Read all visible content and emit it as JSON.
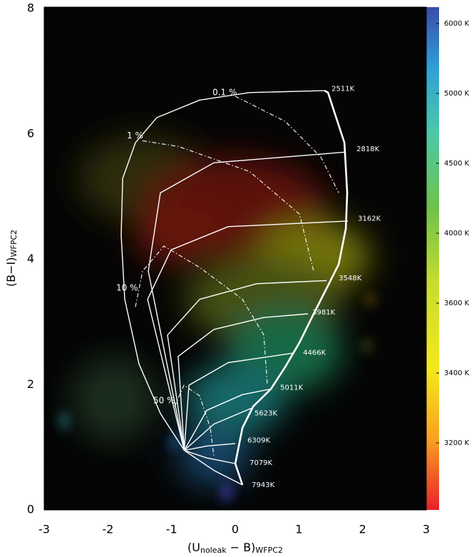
{
  "chart_data": {
    "type": "line",
    "xlabel": {
      "main": "(U",
      "sub1": "noleak",
      "mid": " − B)",
      "sub2": "WFPC2"
    },
    "ylabel": {
      "main": "(B−I)",
      "sub": "WFPC2"
    },
    "xlim": [
      -3,
      3
    ],
    "ylim": [
      0,
      8
    ],
    "xticks": [
      -3,
      -2,
      -1,
      0,
      1,
      2,
      3
    ],
    "yticks": [
      0,
      2,
      4,
      6,
      8
    ],
    "minor_per_major": {
      "x": 10,
      "y": 5
    },
    "series": [
      {
        "color": "#ffffff",
        "style": "bold",
        "x": [
          0.113,
          0.001,
          0.113,
          0.281,
          0.561,
          0.785,
          1.009,
          1.233,
          1.457,
          1.625,
          1.737,
          1.759,
          1.715,
          1.569,
          1.457,
          1.401
        ],
        "y": [
          0.4,
          0.74,
          1.31,
          1.65,
          1.93,
          2.28,
          2.67,
          3.13,
          3.58,
          3.92,
          4.49,
          5.06,
          5.86,
          6.31,
          6.66,
          6.69
        ]
      },
      {
        "color": "#ffffff",
        "style": "solid",
        "x": [
          -0.8,
          -1.175,
          -1.511,
          -1.735,
          -1.791,
          -1.768,
          -1.567,
          -1.231,
          -0.559,
          0.225,
          1.401
        ],
        "y": [
          0.95,
          1.54,
          2.33,
          3.36,
          4.38,
          5.29,
          5.86,
          6.26,
          6.54,
          6.66,
          6.69
        ]
      },
      {
        "color": "#ffffff",
        "style": "solid",
        "x": [
          -0.8,
          -1.365,
          -1.175,
          -0.335,
          1.737
        ],
        "y": [
          0.95,
          3.81,
          5.06,
          5.54,
          5.71
        ]
      },
      {
        "color": "#ffffff",
        "style": "solid",
        "x": [
          -0.8,
          -1.376,
          -1.007,
          -0.111,
          1.77
        ],
        "y": [
          0.95,
          3.36,
          4.15,
          4.52,
          4.61
        ]
      },
      {
        "color": "#ffffff",
        "style": "solid",
        "x": [
          -0.8,
          -1.063,
          -0.559,
          0.337,
          1.435
        ],
        "y": [
          0.95,
          2.79,
          3.36,
          3.61,
          3.66
        ]
      },
      {
        "color": "#ffffff",
        "style": "solid",
        "x": [
          -0.8,
          -0.895,
          -0.335,
          0.449,
          1.143
        ],
        "y": [
          0.95,
          2.45,
          2.88,
          3.07,
          3.13
        ]
      },
      {
        "color": "#ffffff",
        "style": "solid",
        "x": [
          -0.8,
          -0.727,
          -0.111,
          0.897
        ],
        "y": [
          0.95,
          1.99,
          2.35,
          2.5
        ]
      },
      {
        "color": "#ffffff",
        "style": "solid",
        "x": [
          -0.8,
          -0.447,
          0.113,
          0.561
        ],
        "y": [
          0.95,
          1.59,
          1.84,
          1.93
        ]
      },
      {
        "color": "#ffffff",
        "style": "solid",
        "x": [
          -0.8,
          -0.335,
          0.247
        ],
        "y": [
          0.95,
          1.37,
          1.62
        ]
      },
      {
        "color": "#ffffff",
        "style": "solid",
        "x": [
          -0.8,
          -0.447,
          0.001
        ],
        "y": [
          0.95,
          1.02,
          1.06
        ]
      },
      {
        "color": "#ffffff",
        "style": "solid",
        "x": [
          -0.8,
          -0.447,
          0.001
        ],
        "y": [
          0.95,
          0.83,
          0.74
        ]
      },
      {
        "color": "#ffffff",
        "style": "solid",
        "x": [
          -0.8,
          -0.335,
          0.113
        ],
        "y": [
          0.95,
          0.63,
          0.4
        ]
      },
      {
        "color": "#ffffff",
        "style": "dashdot",
        "x": [
          0.001,
          0.785,
          1.345,
          1.625
        ],
        "y": [
          6.6,
          6.2,
          5.63,
          5.06
        ]
      },
      {
        "color": "#ffffff",
        "style": "dashdot",
        "x": [
          -1.455,
          -0.895,
          0.225,
          1.009,
          1.233
        ],
        "y": [
          5.89,
          5.8,
          5.4,
          4.72,
          3.81
        ]
      },
      {
        "color": "#ffffff",
        "style": "dashdot",
        "x": [
          -1.567,
          -1.455,
          -1.119,
          -0.559,
          0.113,
          0.449,
          0.505
        ],
        "y": [
          3.24,
          3.81,
          4.21,
          3.87,
          3.36,
          2.79,
          1.99
        ]
      },
      {
        "color": "#ffffff",
        "style": "dashdot",
        "x": [
          -0.951,
          -0.805,
          -0.559,
          -0.391,
          -0.335
        ],
        "y": [
          1.65,
          1.99,
          1.82,
          1.31,
          0.85
        ]
      }
    ],
    "annotations": [
      {
        "text": "2511K",
        "x": 1.513,
        "y": 6.72,
        "kind": "temperature"
      },
      {
        "text": "2818K",
        "x": 1.905,
        "y": 5.76,
        "kind": "temperature"
      },
      {
        "text": "3162K",
        "x": 1.927,
        "y": 4.65,
        "kind": "temperature"
      },
      {
        "text": "3548K",
        "x": 1.625,
        "y": 3.7,
        "kind": "temperature"
      },
      {
        "text": "3981K",
        "x": 1.211,
        "y": 3.15,
        "kind": "temperature"
      },
      {
        "text": "4466K",
        "x": 1.065,
        "y": 2.51,
        "kind": "temperature"
      },
      {
        "text": "5011K",
        "x": 0.707,
        "y": 1.95,
        "kind": "temperature"
      },
      {
        "text": "5623K",
        "x": 0.303,
        "y": 1.54,
        "kind": "temperature"
      },
      {
        "text": "6309K",
        "x": 0.191,
        "y": 1.11,
        "kind": "temperature"
      },
      {
        "text": "7079K",
        "x": 0.225,
        "y": 0.75,
        "kind": "temperature"
      },
      {
        "text": "7943K",
        "x": 0.259,
        "y": 0.4,
        "kind": "temperature"
      },
      {
        "text": "0.1 %",
        "x": -0.357,
        "y": 6.66,
        "kind": "fraction"
      },
      {
        "text": "1 %",
        "x": -1.701,
        "y": 5.97,
        "kind": "fraction"
      },
      {
        "text": "10 %",
        "x": -1.869,
        "y": 3.54,
        "kind": "fraction"
      },
      {
        "text": "50 %",
        "x": -1.287,
        "y": 1.74,
        "kind": "fraction"
      }
    ],
    "colorbar": {
      "ticks": [
        {
          "value": 6000,
          "label": "6000 K"
        },
        {
          "value": 5000,
          "label": "5000 K"
        },
        {
          "value": 4500,
          "label": "4500 K"
        },
        {
          "value": 4000,
          "label": "4000 K"
        },
        {
          "value": 3600,
          "label": "3600 K"
        },
        {
          "value": 3400,
          "label": "3400 K"
        },
        {
          "value": 3200,
          "label": "3200 K"
        }
      ]
    }
  }
}
